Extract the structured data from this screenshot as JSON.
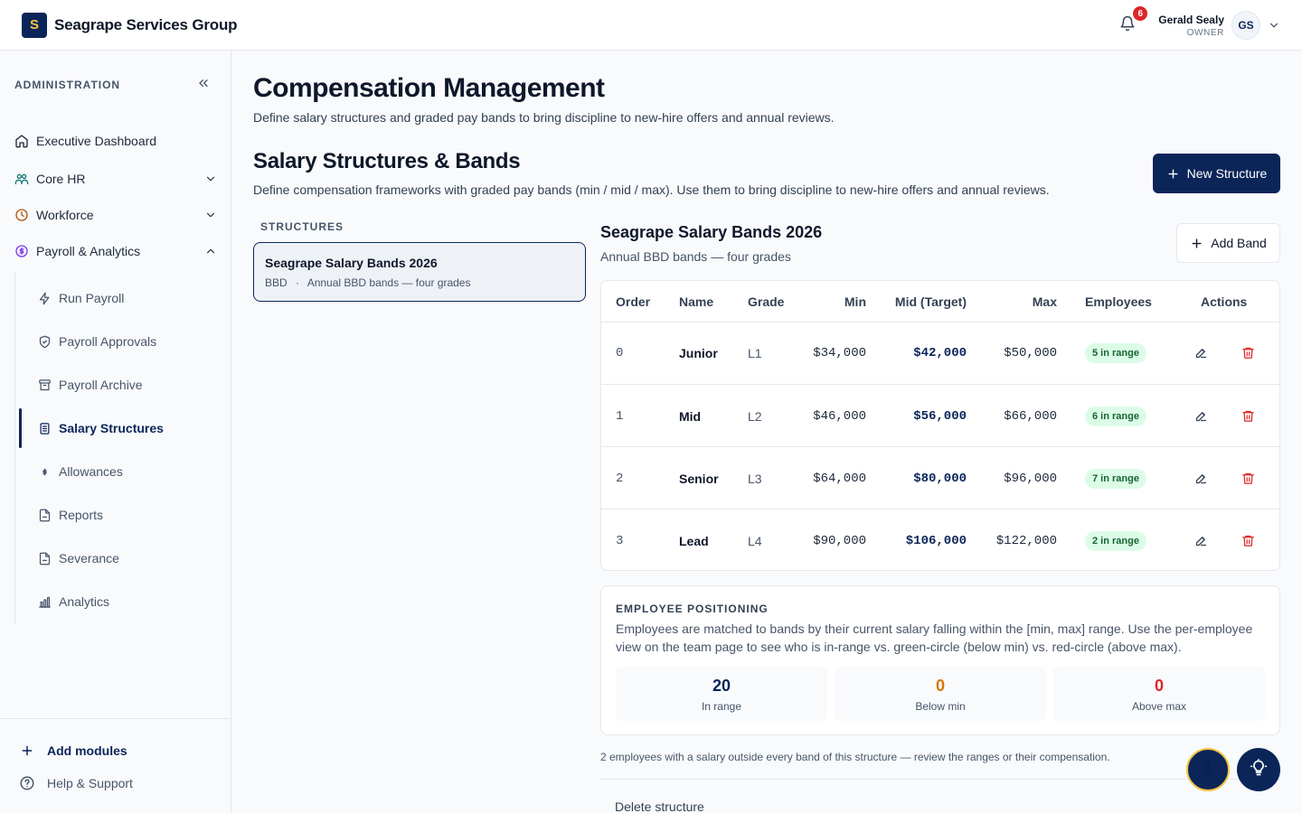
{
  "app": {
    "logo_letter": "S",
    "company": "Seagrape Services Group"
  },
  "header": {
    "notifications_count": "6",
    "user_name": "Gerald Sealy",
    "user_role": "OWNER",
    "user_initials": "GS"
  },
  "sidebar": {
    "section_title": "ADMINISTRATION",
    "items": [
      {
        "label": "Executive Dashboard",
        "icon": "home-icon"
      },
      {
        "label": "Core HR",
        "icon": "people-icon",
        "expanded": false
      },
      {
        "label": "Workforce",
        "icon": "clock-icon",
        "expanded": false
      },
      {
        "label": "Payroll & Analytics",
        "icon": "dollar-circle-icon",
        "expanded": true
      }
    ],
    "sub_items": [
      {
        "label": "Run Payroll",
        "icon": "bolt-icon"
      },
      {
        "label": "Payroll Approvals",
        "icon": "shield-check-icon"
      },
      {
        "label": "Payroll Archive",
        "icon": "archive-icon"
      },
      {
        "label": "Salary Structures",
        "icon": "clipboard-icon",
        "active": true
      },
      {
        "label": "Allowances",
        "icon": "dollar-icon"
      },
      {
        "label": "Reports",
        "icon": "file-icon"
      },
      {
        "label": "Severance",
        "icon": "file-icon"
      },
      {
        "label": "Analytics",
        "icon": "bar-chart-icon"
      }
    ],
    "footer": {
      "add_modules": "Add modules",
      "help": "Help & Support"
    }
  },
  "page": {
    "title": "Compensation Management",
    "subtitle": "Define salary structures and graded pay bands to bring discipline to new-hire offers and annual reviews.",
    "section_title": "Salary Structures & Bands",
    "section_subtitle": "Define compensation frameworks with graded pay bands (min / mid / max). Use them to bring discipline to new-hire offers and annual reviews.",
    "new_structure_label": "New Structure"
  },
  "structures": {
    "label": "STRUCTURES",
    "list": [
      {
        "name": "Seagrape Salary Bands 2026",
        "currency": "BBD",
        "separator": "·",
        "description": "Annual BBD bands — four grades"
      }
    ]
  },
  "selected_structure": {
    "title": "Seagrape Salary Bands 2026",
    "subtitle": "Annual BBD bands — four grades",
    "add_band_label": "Add Band",
    "columns": [
      "Order",
      "Name",
      "Grade",
      "Min",
      "Mid (Target)",
      "Max",
      "Employees",
      "Actions"
    ],
    "bands": [
      {
        "order": "0",
        "name": "Junior",
        "grade": "L1",
        "min": "$34,000",
        "mid": "$42,000",
        "max": "$50,000",
        "employees": "5 in range"
      },
      {
        "order": "1",
        "name": "Mid",
        "grade": "L2",
        "min": "$46,000",
        "mid": "$56,000",
        "max": "$66,000",
        "employees": "6 in range"
      },
      {
        "order": "2",
        "name": "Senior",
        "grade": "L3",
        "min": "$64,000",
        "mid": "$80,000",
        "max": "$96,000",
        "employees": "7 in range"
      },
      {
        "order": "3",
        "name": "Lead",
        "grade": "L4",
        "min": "$90,000",
        "mid": "$106,000",
        "max": "$122,000",
        "employees": "2 in range"
      }
    ]
  },
  "positioning": {
    "title": "EMPLOYEE POSITIONING",
    "description": "Employees are matched to bands by their current salary falling within the [min, max] range. Use the per-employee view on the team page to see who is in-range vs. green-circle (below min) vs. red-circle (above max).",
    "stats": [
      {
        "value": "20",
        "label": "In range",
        "color": "#0b2559"
      },
      {
        "value": "0",
        "label": "Below min",
        "color": "#d97706"
      },
      {
        "value": "0",
        "label": "Above max",
        "color": "#dc2626"
      }
    ],
    "outside_note": "2 employees with a salary outside every band of this structure — review the ranges or their compensation.",
    "delete_label": "Delete structure"
  },
  "colors": {
    "brand": "#0b2559",
    "accent": "#f5c542",
    "danger": "#dc2626",
    "success_bg": "#dcfce7",
    "success_text": "#166534"
  }
}
